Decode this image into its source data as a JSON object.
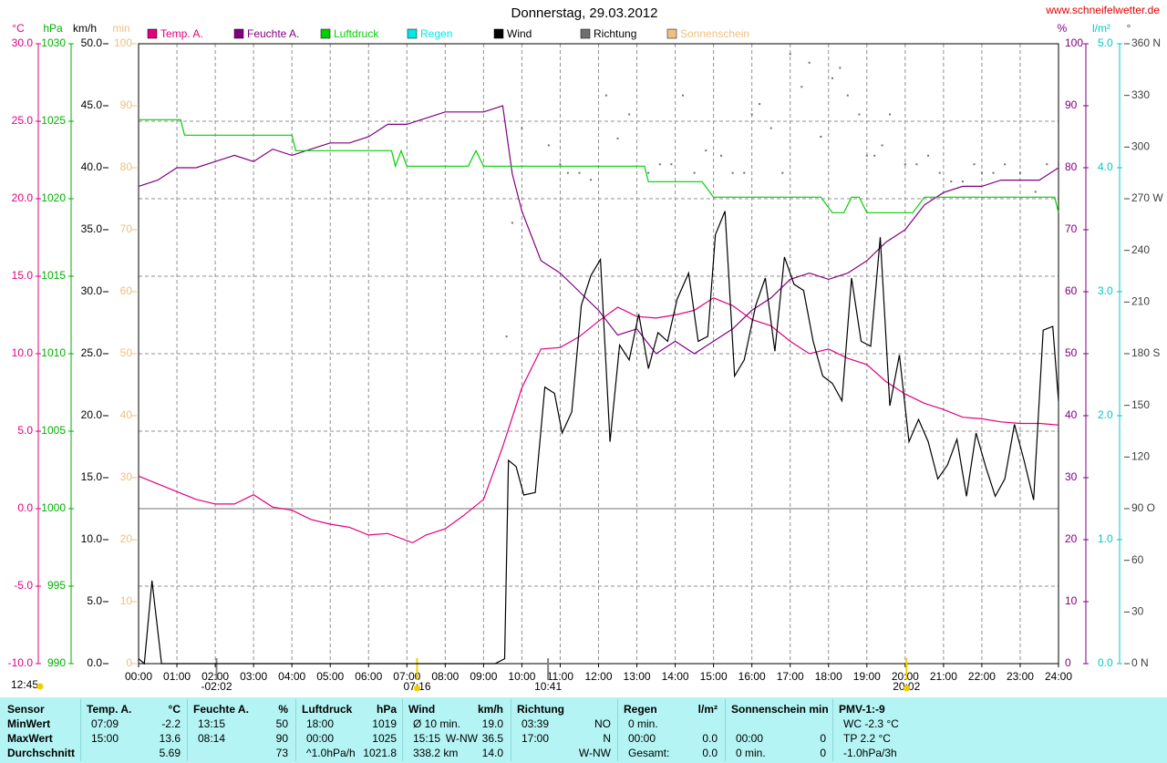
{
  "chart_data": {
    "type": "line",
    "title": "Donnerstag, 29.03.2012",
    "source": "www.schneifelwetter.de",
    "time_label": "12:45",
    "grid": true,
    "xlim": [
      0,
      24
    ],
    "xticks": [
      {
        "value": 0,
        "label": "00:00"
      },
      {
        "value": 1,
        "label": "01:00"
      },
      {
        "value": 2,
        "label": "02:00"
      },
      {
        "value": 3,
        "label": "03:00"
      },
      {
        "value": 4,
        "label": "04:00"
      },
      {
        "value": 5,
        "label": "05:00"
      },
      {
        "value": 6,
        "label": "06:00"
      },
      {
        "value": 7,
        "label": "07:00"
      },
      {
        "value": 8,
        "label": "08:00"
      },
      {
        "value": 9,
        "label": "09:00"
      },
      {
        "value": 10,
        "label": "10:00"
      },
      {
        "value": 11,
        "label": "11:00"
      },
      {
        "value": 12,
        "label": "12:00"
      },
      {
        "value": 13,
        "label": "13:00"
      },
      {
        "value": 14,
        "label": "14:00"
      },
      {
        "value": 15,
        "label": "15:00"
      },
      {
        "value": 16,
        "label": "16:00"
      },
      {
        "value": 17,
        "label": "17:00"
      },
      {
        "value": 18,
        "label": "18:00"
      },
      {
        "value": 19,
        "label": "19:00"
      },
      {
        "value": 20,
        "label": "20:00"
      },
      {
        "value": 21,
        "label": "21:00"
      },
      {
        "value": 22,
        "label": "22:00"
      },
      {
        "value": 23,
        "label": "23:00"
      },
      {
        "value": 24,
        "label": "24:00"
      }
    ],
    "markers": [
      {
        "label": "-02:02",
        "color": "#808080"
      },
      {
        "label": "07:16",
        "color": "#f0d000"
      },
      {
        "label": "10:41",
        "color": "#808080"
      },
      {
        "label": "20:02",
        "color": "#f0d000"
      }
    ],
    "axes": {
      "temp": {
        "unit": "°C",
        "color": "#e0007e",
        "lim": [
          -10,
          30
        ],
        "ticks": [
          {
            "value": -10,
            "label": "-10.0"
          },
          {
            "value": -5,
            "label": "-5.0"
          },
          {
            "value": 0,
            "label": "0.0"
          },
          {
            "value": 5,
            "label": "5.0"
          },
          {
            "value": 10,
            "label": "10.0"
          },
          {
            "value": 15,
            "label": "15.0"
          },
          {
            "value": 20,
            "label": "20.0"
          },
          {
            "value": 25,
            "label": "25.0"
          },
          {
            "value": 30,
            "label": "30.0"
          }
        ]
      },
      "pressure": {
        "unit": "hPa",
        "color": "#00b000",
        "lim": [
          990,
          1030
        ],
        "ticks": [
          990,
          995,
          1000,
          1005,
          1010,
          1015,
          1020,
          1025,
          1030
        ]
      },
      "wind": {
        "unit": "km/h",
        "color": "#000000",
        "lim": [
          0,
          50
        ],
        "ticks": [
          {
            "value": 0,
            "label": "0.0"
          },
          {
            "value": 5,
            "label": "5.0"
          },
          {
            "value": 10,
            "label": "10.0"
          },
          {
            "value": 15,
            "label": "15.0"
          },
          {
            "value": 20,
            "label": "20.0"
          },
          {
            "value": 25,
            "label": "25.0"
          },
          {
            "value": 30,
            "label": "30.0"
          },
          {
            "value": 35,
            "label": "35.0"
          },
          {
            "value": 40,
            "label": "40.0"
          },
          {
            "value": 45,
            "label": "45.0"
          },
          {
            "value": 50,
            "label": "50.0"
          }
        ]
      },
      "sun": {
        "unit": "min",
        "color": "#f0c080",
        "lim": [
          0,
          100
        ],
        "ticks": [
          0,
          10,
          20,
          30,
          40,
          50,
          60,
          70,
          80,
          90,
          100
        ]
      },
      "humidity": {
        "unit": "%",
        "color": "#800080",
        "lim": [
          0,
          100
        ],
        "ticks": [
          0,
          10,
          20,
          30,
          40,
          50,
          60,
          70,
          80,
          90,
          100
        ]
      },
      "rain": {
        "unit": "l/m²",
        "color": "#00c8c8",
        "lim": [
          0,
          5
        ],
        "ticks": [
          {
            "value": 0,
            "label": "0.0"
          },
          {
            "value": 1,
            "label": "1.0"
          },
          {
            "value": 2,
            "label": "2.0"
          },
          {
            "value": 3,
            "label": "3.0"
          },
          {
            "value": 4,
            "label": "4.0"
          },
          {
            "value": 5,
            "label": "5.0"
          }
        ]
      },
      "direction": {
        "unit": "°",
        "color": "#404040",
        "lim": [
          0,
          360
        ],
        "ticks": [
          {
            "value": 0,
            "label": "0 N"
          },
          30,
          60,
          {
            "value": 90,
            "label": "90 O"
          },
          120,
          150,
          {
            "value": 180,
            "label": "180 S"
          },
          210,
          240,
          {
            "value": 270,
            "label": "270 W"
          },
          300,
          330,
          {
            "value": 360,
            "label": "360 N"
          }
        ]
      }
    },
    "series": [
      {
        "name": "Temp. A.",
        "color": "#e0007e",
        "axis": "temp",
        "style": "line",
        "x": [
          0,
          0.5,
          1,
          1.5,
          2,
          2.5,
          3,
          3.5,
          4,
          4.5,
          5,
          5.5,
          6,
          6.5,
          7.15,
          7.5,
          8,
          8.5,
          9,
          9.5,
          10,
          10.5,
          11,
          11.5,
          12,
          12.5,
          13,
          13.5,
          14,
          14.5,
          15,
          15.5,
          16,
          16.5,
          17,
          17.5,
          18,
          18.5,
          19,
          19.5,
          20,
          20.5,
          21,
          21.5,
          22,
          22.5,
          23,
          23.5,
          24
        ],
        "values": [
          2.1,
          1.6,
          1.1,
          0.6,
          0.3,
          0.3,
          0.9,
          0.1,
          -0.1,
          -0.7,
          -1.0,
          -1.2,
          -1.7,
          -1.6,
          -2.2,
          -1.7,
          -1.3,
          -0.4,
          0.6,
          4.0,
          7.8,
          10.3,
          10.4,
          11.1,
          12.1,
          13.0,
          12.4,
          12.3,
          12.5,
          12.8,
          13.6,
          13.1,
          12.2,
          11.8,
          10.8,
          10.0,
          10.3,
          9.7,
          9.3,
          8.2,
          7.4,
          6.8,
          6.4,
          5.9,
          5.8,
          5.6,
          5.5,
          5.5,
          5.4
        ]
      },
      {
        "name": "Feuchte A.",
        "color": "#800080",
        "axis": "humidity",
        "style": "line",
        "x": [
          0,
          0.5,
          1,
          1.5,
          2,
          2.5,
          3,
          3.5,
          4,
          4.5,
          5,
          5.5,
          6,
          6.5,
          7,
          7.5,
          8,
          8.5,
          9,
          9.5,
          9.75,
          10,
          10.5,
          11,
          11.5,
          12,
          12.5,
          13,
          13.5,
          14,
          14.5,
          15,
          15.5,
          16,
          16.5,
          17,
          17.5,
          18,
          18.5,
          19,
          19.5,
          20,
          20.5,
          21,
          21.5,
          22,
          22.5,
          23,
          23.5,
          24
        ],
        "values": [
          77,
          78,
          80,
          80,
          81,
          82,
          81,
          83,
          82,
          83,
          84,
          84,
          85,
          87,
          87,
          88,
          89,
          89,
          89,
          90,
          79,
          73,
          65,
          63,
          60,
          57,
          53,
          54,
          50,
          52,
          50,
          52,
          54,
          57,
          59,
          62,
          63,
          62,
          63,
          65,
          68,
          70,
          74,
          76,
          77,
          77,
          78,
          78,
          78,
          80
        ]
      },
      {
        "name": "Luftdruck",
        "color": "#00d000",
        "axis": "pressure",
        "style": "line",
        "x": [
          0,
          1.1,
          1.2,
          4,
          4.1,
          6.6,
          6.7,
          6.85,
          7,
          8.6,
          8.8,
          9,
          13.2,
          13.3,
          14.7,
          15,
          17.8,
          18.1,
          18.4,
          18.6,
          18.8,
          19,
          20.2,
          20.5,
          23.9,
          24
        ],
        "values": [
          1025.1,
          1025.1,
          1024.1,
          1024.1,
          1023.1,
          1023.1,
          1022.1,
          1023.1,
          1022.1,
          1022.1,
          1023.1,
          1022.1,
          1022.1,
          1021.1,
          1021.1,
          1020.1,
          1020.1,
          1019.1,
          1019.1,
          1020.1,
          1020.1,
          1019.1,
          1019.1,
          1020.1,
          1020.1,
          1019.1
        ]
      },
      {
        "name": "Regen",
        "color": "#00e8e8",
        "axis": "rain",
        "style": "line",
        "x": [],
        "values": []
      },
      {
        "name": "Wind",
        "color": "#000000",
        "axis": "wind",
        "style": "line",
        "x": [
          0,
          0.15,
          0.35,
          0.6,
          9.3,
          9.55,
          9.65,
          9.85,
          10.05,
          10.35,
          10.6,
          10.85,
          11.05,
          11.3,
          11.55,
          11.8,
          12.05,
          12.3,
          12.55,
          12.8,
          13.05,
          13.3,
          13.55,
          13.8,
          14.05,
          14.35,
          14.6,
          14.85,
          15.05,
          15.3,
          15.55,
          15.8,
          16.1,
          16.35,
          16.6,
          16.85,
          17.1,
          17.35,
          17.6,
          17.85,
          18.1,
          18.35,
          18.6,
          18.85,
          19.1,
          19.35,
          19.6,
          19.85,
          20.1,
          20.35,
          20.6,
          20.85,
          21.1,
          21.35,
          21.6,
          21.85,
          22.1,
          22.35,
          22.6,
          22.85,
          23.1,
          23.35,
          23.6,
          23.85,
          24
        ],
        "values": [
          0.4,
          0,
          6.7,
          0,
          0,
          0.4,
          16.4,
          15.9,
          13.6,
          13.8,
          22.3,
          21.8,
          18.6,
          20.3,
          28.9,
          31.3,
          32.6,
          17.9,
          25.7,
          24.5,
          28.2,
          23.8,
          26.7,
          26.0,
          29.4,
          31.5,
          26.0,
          26.4,
          34.6,
          36.5,
          23.2,
          24.5,
          28.9,
          31.1,
          25.2,
          32.8,
          30.6,
          30.1,
          26.0,
          23.2,
          22.6,
          21.2,
          31.1,
          26.0,
          25.6,
          34.4,
          20.8,
          24.9,
          17.9,
          19.7,
          17.9,
          14.9,
          16.0,
          18.1,
          13.5,
          18.6,
          15.9,
          13.5,
          14.9,
          19.3,
          16.4,
          13.2,
          26.9,
          27.2,
          21.2
        ]
      },
      {
        "name": "Richtung",
        "color": "#707070",
        "axis": "direction",
        "style": "points",
        "x": [
          9.6,
          9.75,
          10,
          10.7,
          11,
          11.2,
          11.5,
          11.8,
          12.2,
          12.5,
          12.8,
          13.3,
          13.6,
          13.9,
          14.2,
          14.5,
          14.8,
          15.2,
          15.5,
          15.8,
          16,
          16.2,
          16.5,
          16.8,
          17,
          17.3,
          17.5,
          17.8,
          18.1,
          18.3,
          18.5,
          18.8,
          19,
          19.2,
          19.4,
          19.6,
          20,
          20.3,
          20.6,
          20.9,
          21.2,
          21.5,
          21.8,
          22,
          22.3,
          22.6,
          23,
          23.4,
          23.7,
          24
        ],
        "values": [
          190,
          256,
          311,
          301,
          290,
          285,
          285,
          281,
          330,
          305,
          319,
          285,
          290,
          290,
          330,
          285,
          298,
          295,
          285,
          285,
          319,
          325,
          311,
          285,
          354,
          335,
          349,
          306,
          340,
          346,
          330,
          319,
          295,
          295,
          301,
          319,
          290,
          290,
          295,
          285,
          280,
          280,
          290,
          285,
          285,
          290,
          285,
          274,
          290,
          290
        ]
      },
      {
        "name": "Sonnenschein",
        "color": "#f0c080",
        "axis": "sun",
        "style": "line",
        "x": [],
        "values": []
      }
    ]
  },
  "stats": {
    "row_labels": [
      "Sensor",
      "MinWert",
      "MaxWert",
      "Durchschnitt"
    ],
    "columns": [
      {
        "title": "Temp. A.",
        "unit": "°C",
        "cells": [
          [
            "07:09",
            null,
            "-2.2"
          ],
          [
            "15:00",
            null,
            "13.6"
          ],
          [
            null,
            null,
            "5.69"
          ]
        ]
      },
      {
        "title": "Feuchte A.",
        "unit": "%",
        "cells": [
          [
            "13:15",
            null,
            "50"
          ],
          [
            "08:14",
            null,
            "90"
          ],
          [
            null,
            null,
            "73"
          ]
        ]
      },
      {
        "title": "Luftdruck",
        "unit": "hPa",
        "cells": [
          [
            "18:00",
            null,
            "1019"
          ],
          [
            "00:00",
            null,
            "1025"
          ],
          [
            "^1.0hPa/h",
            null,
            "1021.8"
          ]
        ]
      },
      {
        "title": "Wind",
        "unit": "km/h",
        "cells": [
          [
            "Ø 10 min.",
            null,
            "19.0"
          ],
          [
            "15:15",
            "W-NW",
            "36.5"
          ],
          [
            "338.2 km",
            null,
            "14.0"
          ]
        ]
      },
      {
        "title": "Richtung",
        "unit": null,
        "cells": [
          [
            "03:39",
            null,
            "NO"
          ],
          [
            "17:00",
            null,
            "N"
          ],
          [
            null,
            null,
            "W-NW"
          ]
        ]
      },
      {
        "title": "Regen",
        "unit": "l/m²",
        "cells": [
          [
            "0 min.",
            null,
            null
          ],
          [
            "00:00",
            null,
            "0.0"
          ],
          [
            "Gesamt:",
            null,
            "0.0"
          ]
        ]
      },
      {
        "title": "Sonnenschein min",
        "unit": null,
        "cells": [
          [
            null,
            null,
            null
          ],
          [
            "00:00",
            null,
            "0"
          ],
          [
            "0 min.",
            null,
            "0"
          ]
        ]
      },
      {
        "title": "PMV-1:-9",
        "unit": null,
        "cells": [
          [
            "WC -2.3 °C",
            null,
            null
          ],
          [
            "TP 2.2 °C",
            null,
            null
          ],
          [
            "-1.0hPa/3h",
            null,
            null
          ]
        ]
      }
    ]
  }
}
